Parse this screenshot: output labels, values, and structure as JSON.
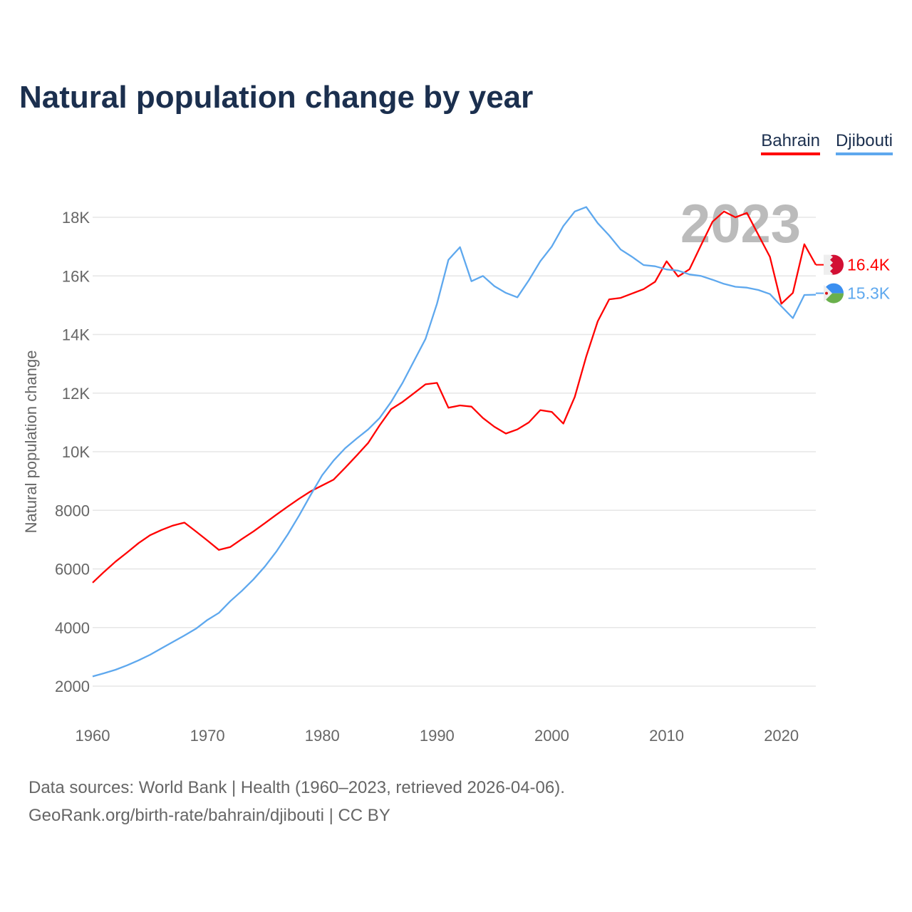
{
  "title": "Natural population change by year",
  "source_line1": "Data sources: World Bank | Health (1960–2023, retrieved 2026-04-06).",
  "source_line2": "GeoRank.org/birth-rate/bahrain/djibouti | CC BY",
  "chart_data": {
    "type": "line",
    "title": "Natural population change by year",
    "xlabel": "",
    "ylabel": "Natural population change",
    "year_watermark": "2023",
    "xlim": [
      1960,
      2023
    ],
    "ylim": [
      2000,
      18000
    ],
    "xticks": [
      1960,
      1970,
      1980,
      1990,
      2000,
      2010,
      2020
    ],
    "yticks": [
      {
        "v": 2000,
        "l": "2000"
      },
      {
        "v": 4000,
        "l": "4000"
      },
      {
        "v": 6000,
        "l": "6000"
      },
      {
        "v": 8000,
        "l": "8000"
      },
      {
        "v": 10000,
        "l": "10K"
      },
      {
        "v": 12000,
        "l": "12K"
      },
      {
        "v": 14000,
        "l": "14K"
      },
      {
        "v": 16000,
        "l": "16K"
      },
      {
        "v": 18000,
        "l": "18K"
      }
    ],
    "grid": true,
    "legend_position": "top-right",
    "x_start": 1960,
    "series": [
      {
        "name": "Bahrain",
        "color": "#ff0000",
        "end_label": "16.4K",
        "flag": "bahrain-flag-icon",
        "values": [
          5530,
          5900,
          6250,
          6560,
          6880,
          7150,
          7330,
          7480,
          7580,
          7280,
          6970,
          6650,
          6750,
          7020,
          7280,
          7560,
          7850,
          8130,
          8400,
          8650,
          8850,
          9050,
          9450,
          9870,
          10300,
          10900,
          11450,
          11700,
          12000,
          12300,
          12350,
          11500,
          11580,
          11540,
          11150,
          10850,
          10620,
          10760,
          11000,
          11420,
          11360,
          10960,
          11870,
          13250,
          14450,
          15200,
          15250,
          15400,
          15550,
          15800,
          16500,
          15980,
          16230,
          17050,
          17850,
          18200,
          18000,
          18150,
          17400,
          16650,
          15050,
          15420,
          17080,
          16380
        ]
      },
      {
        "name": "Djibouti",
        "color": "#5ea8ee",
        "end_label": "15.3K",
        "flag": "djibouti-flag-icon",
        "values": [
          2330,
          2440,
          2560,
          2710,
          2880,
          3070,
          3290,
          3510,
          3730,
          3960,
          4260,
          4500,
          4900,
          5250,
          5640,
          6080,
          6590,
          7180,
          7830,
          8530,
          9200,
          9700,
          10120,
          10450,
          10760,
          11150,
          11700,
          12350,
          13100,
          13850,
          15050,
          16550,
          16980,
          15820,
          16000,
          15650,
          15420,
          15270,
          15850,
          16500,
          17000,
          17700,
          18200,
          18350,
          17800,
          17380,
          16900,
          16650,
          16370,
          16330,
          16220,
          16180,
          16050,
          16000,
          15870,
          15730,
          15630,
          15600,
          15520,
          15380,
          14960,
          14560,
          15350,
          15360
        ]
      }
    ]
  }
}
